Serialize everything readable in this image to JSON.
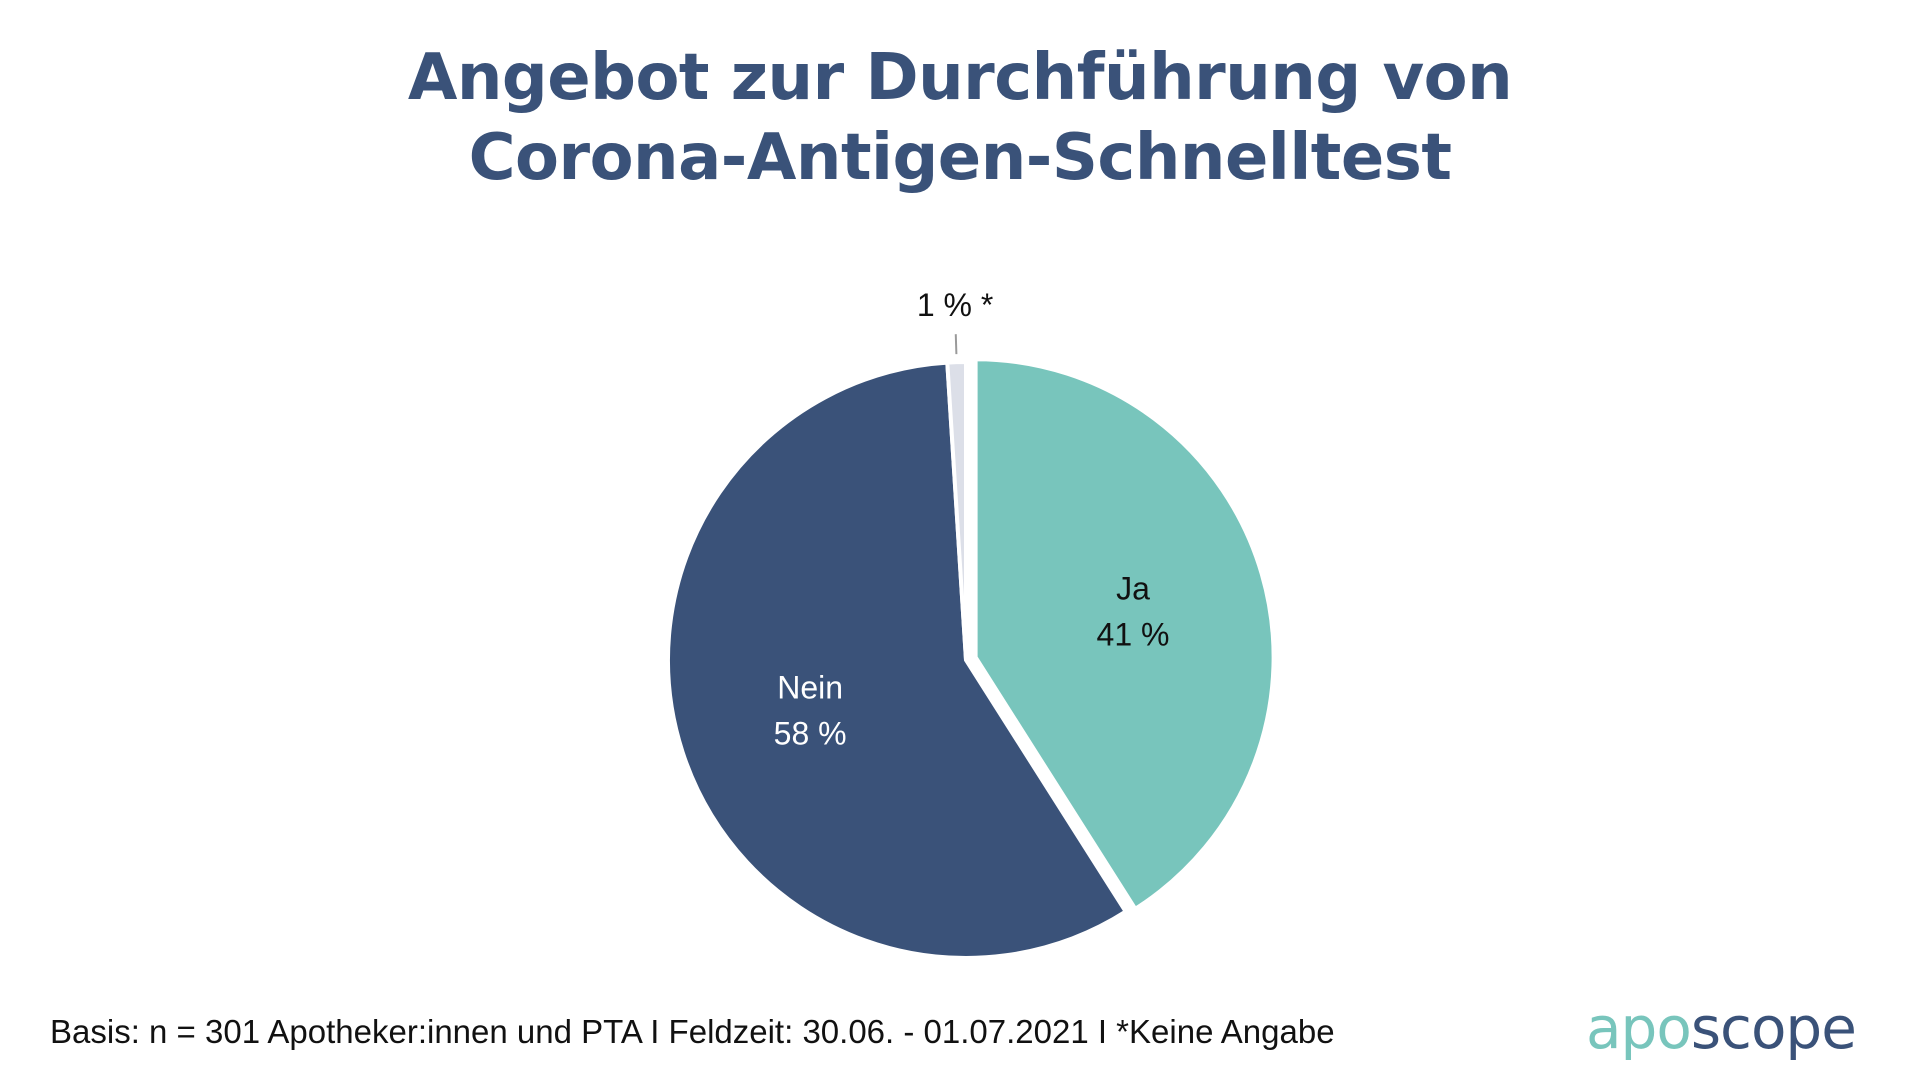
{
  "title": {
    "line1": "Angebot zur Durchführung von",
    "line2": "Corona-Antigen-Schnelltest"
  },
  "chart_data": {
    "type": "pie",
    "slices": [
      {
        "category": "Ja",
        "value": 41,
        "value_label": "41 %",
        "color": "#78c5bc",
        "label_color": "#111111",
        "exploded": true
      },
      {
        "category": "Nein",
        "value": 58,
        "value_label": "58 %",
        "color": "#3a5279",
        "label_color": "#ffffff",
        "exploded": false
      },
      {
        "category": "",
        "value": 1,
        "value_label": "1 % *",
        "color": "#dcdfe8",
        "label_color": "#111111",
        "exploded": false,
        "note": "Keine Angabe"
      }
    ],
    "start": "top",
    "direction": "clockwise",
    "legend": "none"
  },
  "footnote": "Basis: n = 301 Apotheker:innen und PTA I Feldzeit: 30.06. - 01.07.2021 I *Keine Angabe",
  "logo": {
    "part1": "apo",
    "part2": "scope",
    "color1": "#78c5bc",
    "color2": "#3a5279"
  }
}
